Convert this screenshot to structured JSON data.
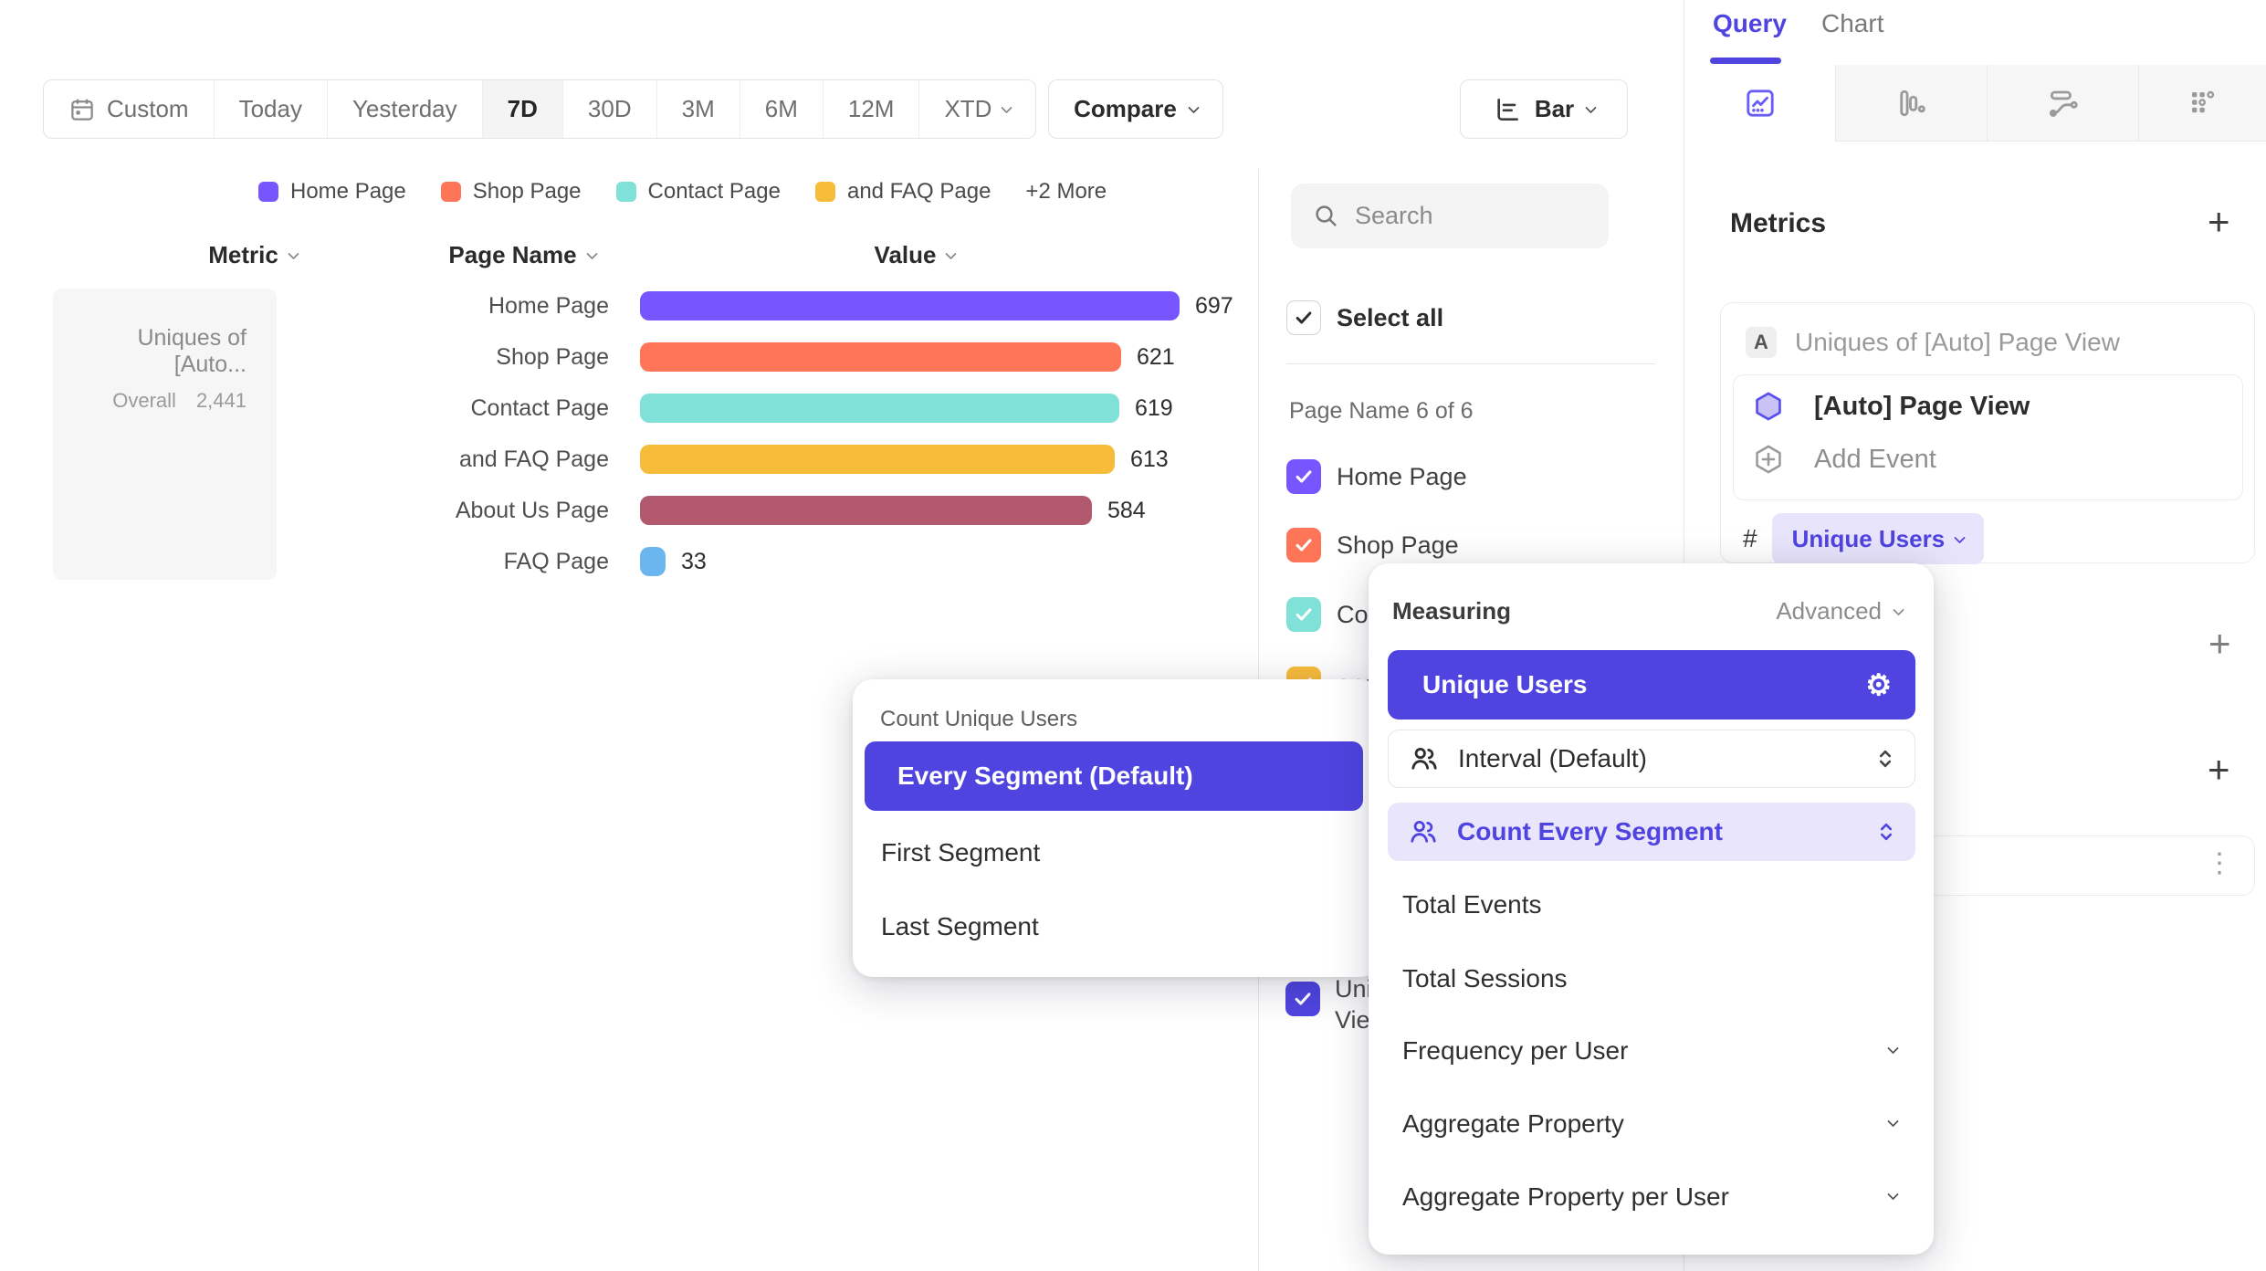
{
  "colors": {
    "brand": "#4f44e0",
    "pill_bg": "#e7e4fb",
    "row_selected_bg": "#e9e6fb",
    "white_check": "#ffffff",
    "dark_check": "#2d2d2d"
  },
  "toolbar": {
    "ranges": [
      "Custom",
      "Today",
      "Yesterday",
      "7D",
      "30D",
      "3M",
      "6M",
      "12M",
      "XTD"
    ],
    "selected_range": "7D",
    "compare_label": "Compare",
    "chart_type_label": "Bar"
  },
  "legend": {
    "items": [
      {
        "label": "Home Page",
        "color": "#7856ff"
      },
      {
        "label": "Shop Page",
        "color": "#ff7557"
      },
      {
        "label": "Contact Page",
        "color": "#80e1d9"
      },
      {
        "label": "and FAQ Page",
        "color": "#f8bc3b"
      }
    ],
    "more_label": "+2 More"
  },
  "chart_data": {
    "type": "bar",
    "orientation": "horizontal",
    "title": "Uniques of [Auto] Page View",
    "metric_label": "Uniques of [Auto...",
    "overall_label": "Overall",
    "overall_value": "2,441",
    "headers": {
      "metric": "Metric",
      "page_name": "Page Name",
      "value": "Value"
    },
    "categories": [
      "Home Page",
      "Shop Page",
      "Contact Page",
      "and FAQ Page",
      "About Us Page",
      "FAQ Page"
    ],
    "values": [
      697,
      621,
      619,
      613,
      584,
      33
    ],
    "colors": [
      "#7856ff",
      "#ff7557",
      "#80e1d9",
      "#f8bc3b",
      "#b2596e",
      "#6cb6f0"
    ],
    "xlim": [
      0,
      720
    ],
    "grid": false,
    "legend_position": "top"
  },
  "filter_panel": {
    "search_placeholder": "Search",
    "select_all_label": "Select all",
    "section_label": "Page Name 6 of 6",
    "items": [
      {
        "label": "Home Page",
        "color": "#7856ff",
        "checked": true
      },
      {
        "label": "Shop Page",
        "color": "#ff7557",
        "checked": true
      },
      {
        "label": "Contact Page",
        "color": "#80e1d9",
        "checked": true
      },
      {
        "label": "and FAQ Page",
        "color": "#f8bc3b",
        "checked": true
      },
      {
        "label": "About Us Page",
        "color": "#b2596e",
        "checked": true
      },
      {
        "label": "FAQ Page",
        "color": "#6cb6f0",
        "checked": true
      }
    ],
    "metric_item": {
      "label": "Uniques of [Auto] Page View",
      "color": "#4f44e0",
      "checked": true
    }
  },
  "query_panel": {
    "tabs": [
      {
        "label": "Query"
      },
      {
        "label": "Chart"
      }
    ],
    "active_tab": "Query",
    "report_tabs": [
      "insights",
      "funnels",
      "flows",
      "retention"
    ],
    "metrics_title": "Metrics",
    "add_metric_label": "+",
    "metric_letter": "A",
    "metric_name": "Uniques of [Auto] Page View",
    "event_name": "[Auto] Page View",
    "add_event_label": "Add Event",
    "hash_symbol": "#",
    "measure_pill_label": "Unique Users",
    "add_section_1": "+",
    "add_section_2": "+",
    "overflow_dots": "⋮"
  },
  "segment_menu": {
    "title": "Count Unique Users",
    "selected": "Every Segment (Default)",
    "options": [
      "First Segment",
      "Last Segment"
    ]
  },
  "measuring_menu": {
    "title": "Measuring",
    "advanced_label": "Advanced",
    "selected": "Unique Users",
    "gear_icon": "⚙",
    "interval_row": "Interval (Default)",
    "count_row": "Count Every Segment",
    "options": [
      "Total Events",
      "Total Sessions",
      "Frequency per User",
      "Aggregate Property",
      "Aggregate Property per User"
    ]
  }
}
